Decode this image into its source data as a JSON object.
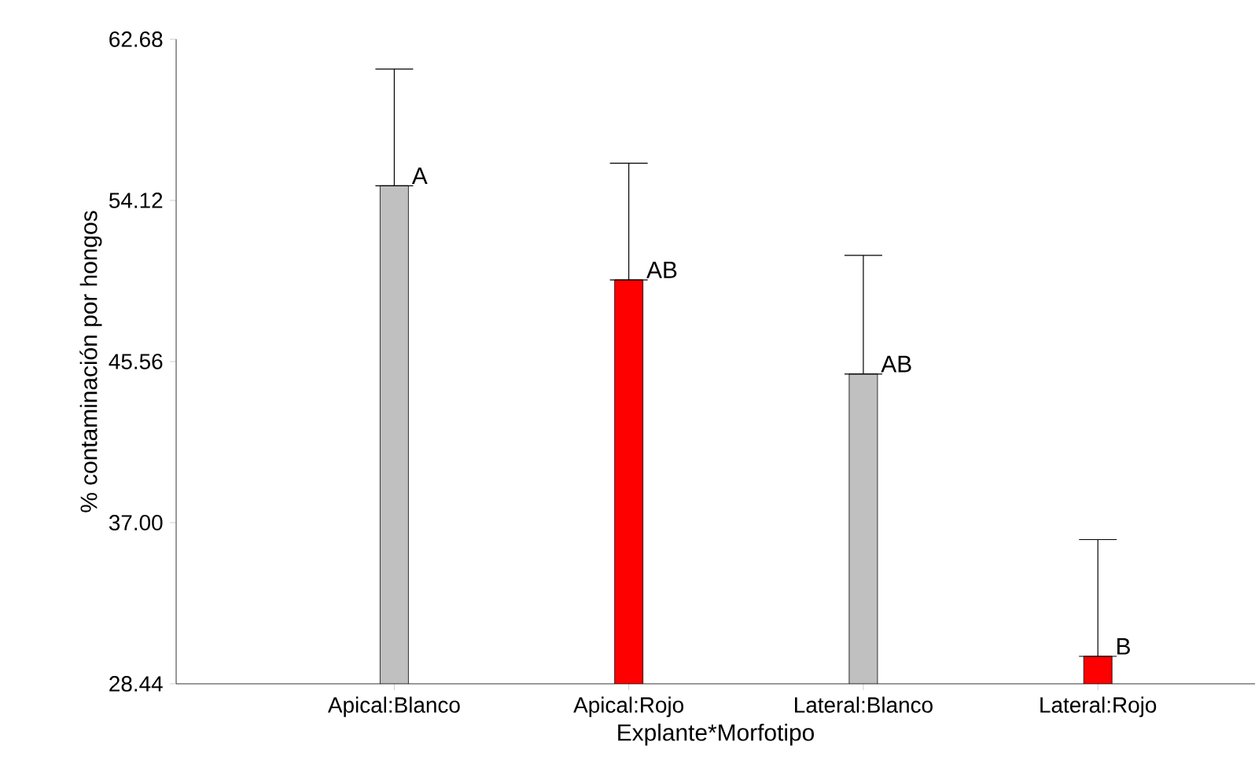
{
  "chart_data": {
    "type": "bar",
    "xlabel": "Explante*Morfotipo",
    "ylabel": "% contaminación por hongos",
    "categories": [
      "Apical:Blanco",
      "Apical:Rojo",
      "Lateral:Blanco",
      "Lateral:Rojo"
    ],
    "values": [
      54.9,
      49.9,
      44.9,
      29.9
    ],
    "colors": [
      "#c0c0c0",
      "#ff0000",
      "#c0c0c0",
      "#ff0000"
    ],
    "errors": [
      [
        54.9,
        61.1
      ],
      [
        49.9,
        56.1
      ],
      [
        44.9,
        51.2
      ],
      [
        29.9,
        36.1
      ]
    ],
    "ylim": [
      28.44,
      62.68
    ],
    "yticks": [
      28.44,
      {
        "value": 37.0,
        "label": "37.00"
      },
      45.56,
      54.12,
      62.68
    ],
    "annotations": [
      {
        "text": "A",
        "x": "Apical:Blanco",
        "y": 54.9
      },
      {
        "text": "AB",
        "x": "Apical:Rojo",
        "y": 49.9
      },
      {
        "text": "AB",
        "x": "Lateral:Blanco",
        "y": 44.9
      },
      {
        "text": "B",
        "x": "Lateral:Rojo",
        "y": 29.9
      }
    ],
    "grid": false
  }
}
